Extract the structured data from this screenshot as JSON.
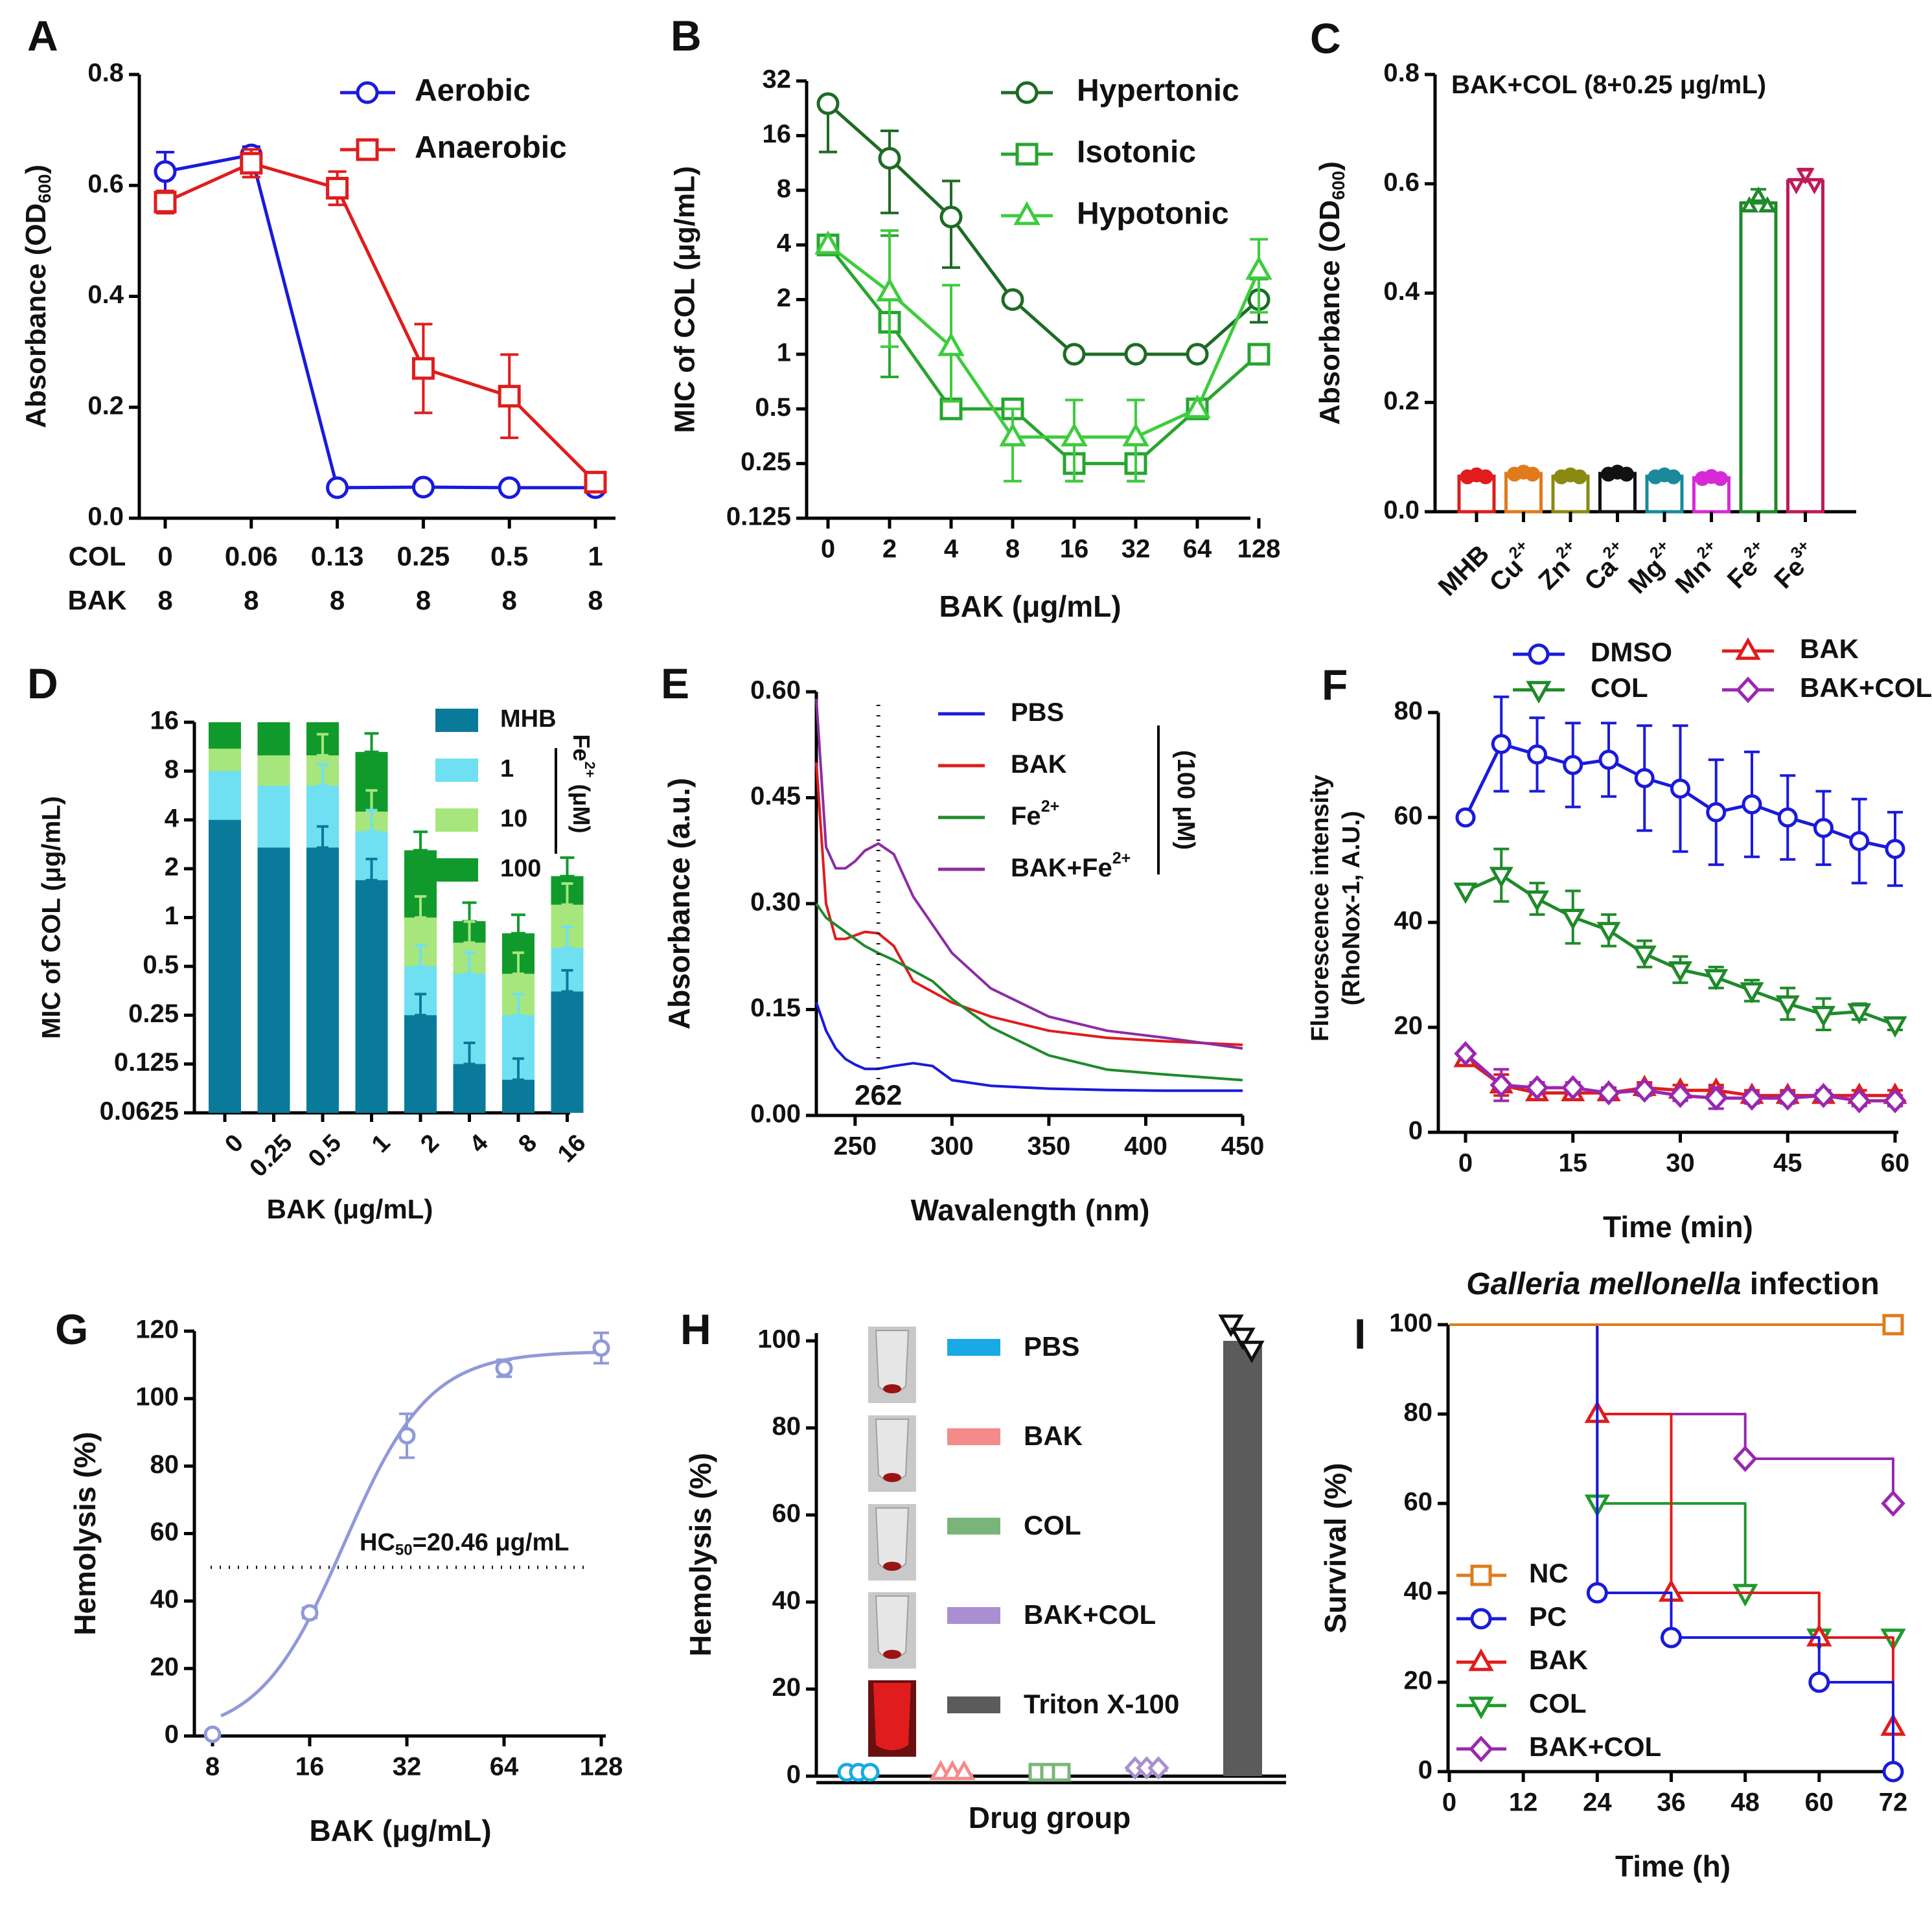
{
  "colors": {
    "aerobic": "#1a1adc",
    "anaerobic": "#e01c1c",
    "hyper": "#1e6b24",
    "iso": "#27a52f",
    "hypo": "#3dcc3d",
    "mhb_teal": "#0a7a9a",
    "fe1_cyan": "#6ee0f2",
    "fe10_green": "#a7e67c",
    "fe100_green": "#119a2c",
    "pbs_blue": "#1a1adc",
    "bak_red": "#e01c1c",
    "fe_green": "#1f8a2a",
    "bakfe_purple": "#8b2da3",
    "dmso": "#1a1adc",
    "col_green": "#1f8a2a",
    "bak_f": "#e01c1c",
    "bakcol_purple": "#9a27b0",
    "hemo": "#9099d8",
    "h_pbs": "#19a9e6",
    "h_bak": "#f48a8a",
    "h_col": "#79b57a",
    "h_bakcol": "#a98fd0",
    "h_triton": "#5b5b5b",
    "nc": "#e07b1c",
    "pc": "#1a1adc",
    "bak_i": "#e01c1c",
    "col_i": "#1f9a2a",
    "bakcol_i": "#9a27b0"
  },
  "chart_data": [
    {
      "panel": "A",
      "type": "line",
      "ylabel": "Absorbance (OD600)",
      "ylim": [
        0,
        0.8
      ],
      "yticks": [
        "0.0",
        "0.2",
        "0.4",
        "0.6",
        "0.8"
      ],
      "row_labels": [
        "COL",
        "BAK"
      ],
      "col_values": [
        "0",
        "0.06",
        "0.13",
        "0.25",
        "0.5",
        "1"
      ],
      "bak_values": [
        "8",
        "8",
        "8",
        "8",
        "8",
        "8"
      ],
      "series": [
        {
          "name": "Aerobic",
          "values": [
            0.625,
            0.655,
            0.055,
            0.056,
            0.055,
            0.055
          ],
          "err": [
            0.035,
            0.015,
            0.0,
            0.0,
            0.0,
            0.0
          ],
          "marker": "circle"
        },
        {
          "name": "Anaerobic",
          "values": [
            0.57,
            0.64,
            0.595,
            0.27,
            0.22,
            0.065
          ],
          "err": [
            0.02,
            0.025,
            0.03,
            0.08,
            0.075,
            0.01
          ],
          "marker": "square"
        }
      ]
    },
    {
      "panel": "B",
      "type": "line",
      "ylabel": "MIC of COL (μg/mL)",
      "xlabel": "BAK (μg/mL)",
      "ylim": [
        0.125,
        32
      ],
      "yticks": [
        "0.125",
        "0.25",
        "0.5",
        "1",
        "2",
        "4",
        "8",
        "16",
        "32"
      ],
      "categories": [
        "0",
        "2",
        "4",
        "8",
        "16",
        "32",
        "64",
        "128"
      ],
      "series": [
        {
          "name": "Hypertonic",
          "values": [
            24,
            12,
            5.7,
            2,
            1,
            1,
            1,
            2
          ],
          "err_hi": [
            0,
            17,
            9,
            0,
            0,
            0,
            0,
            2.6
          ],
          "err_lo": [
            13,
            6,
            3,
            0,
            0,
            0,
            0,
            1.5
          ],
          "marker": "circle"
        },
        {
          "name": "Isotonic",
          "values": [
            4,
            1.5,
            0.5,
            0.5,
            0.25,
            0.25,
            0.5,
            1
          ],
          "err_hi": [
            0,
            4.5,
            0,
            0,
            0,
            0,
            0,
            0
          ],
          "err_lo": [
            0,
            0.75,
            0,
            0,
            0.2,
            0.2,
            0,
            0
          ],
          "marker": "square"
        },
        {
          "name": "Hypotonic",
          "values": [
            4,
            2.2,
            1.1,
            0.35,
            0.35,
            0.35,
            0.5,
            2.9
          ],
          "err_hi": [
            0,
            4.8,
            2.4,
            0.5,
            0.56,
            0.56,
            0,
            4.3
          ],
          "err_lo": [
            0,
            1.1,
            0.55,
            0.2,
            0.2,
            0.2,
            0,
            1.7
          ],
          "marker": "triangle"
        }
      ]
    },
    {
      "panel": "C",
      "type": "bar",
      "title": "BAK+COL (8+0.25 μg/mL)",
      "ylabel": "Absorbance (OD600)",
      "ylim": [
        0,
        0.8
      ],
      "yticks": [
        "0.0",
        "0.2",
        "0.4",
        "0.6",
        "0.8"
      ],
      "categories": [
        "MHB",
        "Cu2+",
        "Zn2+",
        "Ca2+",
        "Mg2+",
        "Mn2+",
        "Fe2+",
        "Fe3+"
      ],
      "values": [
        0.065,
        0.07,
        0.065,
        0.07,
        0.065,
        0.062,
        0.565,
        0.605
      ],
      "err": [
        0.005,
        0.003,
        0.003,
        0.004,
        0.003,
        0.003,
        0.025,
        0.022
      ]
    },
    {
      "panel": "D",
      "type": "bar",
      "ylabel": "MIC of COL (μg/mL)",
      "xlabel": "BAK (μg/mL)",
      "ylim": [
        0.0625,
        16
      ],
      "yticks": [
        "0.0625",
        "0.125",
        "0.25",
        "0.5",
        "1",
        "2",
        "4",
        "8",
        "16"
      ],
      "categories": [
        "0",
        "0.25",
        "0.5",
        "1",
        "2",
        "4",
        "8",
        "16"
      ],
      "legend_title": "Fe2+ (μM)",
      "series": [
        {
          "name": "MHB",
          "values": [
            4,
            2.7,
            2.7,
            1.7,
            0.25,
            0.125,
            0.1,
            0.35
          ]
        },
        {
          "name": "1",
          "values": [
            8,
            6.5,
            6.5,
            3.4,
            0.5,
            0.45,
            0.25,
            0.65
          ]
        },
        {
          "name": "10",
          "values": [
            11,
            10,
            10,
            4.5,
            1.0,
            0.7,
            0.45,
            1.2
          ]
        },
        {
          "name": "100",
          "values": [
            16,
            16,
            16,
            10.5,
            2.6,
            0.95,
            0.8,
            1.8
          ]
        }
      ]
    },
    {
      "panel": "E",
      "type": "line",
      "ylabel": "Absorbance (a.u.)",
      "xlabel": "Wavalength (nm)",
      "xlim": [
        230,
        450
      ],
      "ylim": [
        0,
        0.6
      ],
      "xticks": [
        "250",
        "300",
        "350",
        "400",
        "450"
      ],
      "yticks": [
        "0.00",
        "0.15",
        "0.30",
        "0.45",
        "0.60"
      ],
      "marker_line_x": 262,
      "marker_line_label": "262",
      "legend_note": "(100 μM)",
      "x": [
        230,
        235,
        240,
        245,
        250,
        255,
        262,
        270,
        280,
        290,
        300,
        320,
        350,
        380,
        410,
        450
      ],
      "series": [
        {
          "name": "PBS",
          "values": [
            0.16,
            0.12,
            0.095,
            0.08,
            0.072,
            0.066,
            0.066,
            0.07,
            0.074,
            0.07,
            0.05,
            0.042,
            0.038,
            0.036,
            0.035,
            0.035
          ]
        },
        {
          "name": "BAK",
          "values": [
            0.5,
            0.3,
            0.25,
            0.25,
            0.255,
            0.26,
            0.258,
            0.24,
            0.19,
            0.175,
            0.16,
            0.14,
            0.12,
            0.11,
            0.105,
            0.1
          ]
        },
        {
          "name": "Fe2+",
          "values": [
            0.3,
            0.28,
            0.27,
            0.26,
            0.25,
            0.24,
            0.23,
            0.22,
            0.205,
            0.19,
            0.165,
            0.125,
            0.085,
            0.065,
            0.058,
            0.05
          ]
        },
        {
          "name": "BAK+Fe2+",
          "values": [
            0.59,
            0.38,
            0.35,
            0.35,
            0.36,
            0.375,
            0.385,
            0.37,
            0.31,
            0.27,
            0.23,
            0.18,
            0.14,
            0.12,
            0.11,
            0.095
          ]
        }
      ]
    },
    {
      "panel": "F",
      "type": "line",
      "ylabel": "Fluorescence intensity (RhoNox-1, A.U.)",
      "xlabel": "Time (min)",
      "xlim": [
        0,
        60
      ],
      "ylim": [
        0,
        80
      ],
      "xticks": [
        "0",
        "15",
        "30",
        "45",
        "60"
      ],
      "yticks": [
        "0",
        "20",
        "40",
        "60",
        "80"
      ],
      "x": [
        0,
        5,
        10,
        15,
        20,
        25,
        30,
        35,
        40,
        45,
        50,
        55,
        60
      ],
      "series": [
        {
          "name": "DMSO",
          "values": [
            60,
            74,
            72,
            70,
            71,
            67.5,
            65.5,
            61,
            62.5,
            60,
            58,
            55.5,
            54
          ],
          "err": [
            0,
            9,
            7,
            8,
            7,
            10,
            12,
            10,
            10,
            8,
            7,
            8,
            7
          ],
          "marker": "circle"
        },
        {
          "name": "COL",
          "values": [
            46,
            49,
            44.5,
            41,
            38.5,
            34,
            31,
            29.5,
            27,
            24.5,
            22.5,
            23,
            20.5
          ],
          "err": [
            0,
            5,
            3,
            5,
            3,
            2.5,
            2.5,
            2,
            2,
            3,
            3,
            1.5,
            1
          ],
          "marker": "triangle-down"
        },
        {
          "name": "BAK",
          "values": [
            14,
            9,
            7.5,
            7.5,
            7.5,
            8.5,
            8,
            8,
            7,
            7,
            7,
            7,
            7
          ],
          "err": [
            0,
            2,
            1,
            1,
            1,
            1,
            1,
            1,
            1,
            1,
            1,
            1,
            1
          ],
          "marker": "triangle"
        },
        {
          "name": "BAK+COL",
          "values": [
            15,
            9,
            8.5,
            8.5,
            7.5,
            8,
            7,
            6.5,
            6.5,
            6.5,
            7,
            6,
            6
          ],
          "err": [
            0,
            3,
            1,
            1,
            1,
            1,
            1,
            2,
            1,
            1,
            1,
            1,
            1
          ],
          "marker": "diamond"
        }
      ]
    },
    {
      "panel": "G",
      "type": "scatter",
      "ylabel": "Hemolysis (%)",
      "xlabel": "BAK (μg/mL)",
      "ylim": [
        0,
        120
      ],
      "xticks": [
        "8",
        "16",
        "32",
        "64",
        "128"
      ],
      "yticks": [
        "0",
        "20",
        "40",
        "60",
        "80",
        "100",
        "120"
      ],
      "x": [
        8,
        16,
        32,
        64,
        128
      ],
      "values": [
        0.5,
        36.5,
        89,
        109,
        115
      ],
      "err": [
        0,
        1.5,
        6.5,
        2.5,
        4.5
      ],
      "threshold": 50,
      "annotation": "HC50=20.46 μg/mL"
    },
    {
      "panel": "H",
      "type": "bar",
      "ylabel": "Hemolysis (%)",
      "xlabel": "Drug group",
      "ylim": [
        0,
        100
      ],
      "yticks": [
        "0",
        "20",
        "40",
        "60",
        "80",
        "100"
      ],
      "categories": [
        "PBS",
        "BAK",
        "COL",
        "BAK+COL",
        "Triton X-100"
      ],
      "values": [
        0,
        0,
        0,
        1,
        100
      ]
    },
    {
      "panel": "I",
      "type": "line",
      "title": "Galleria mellonella infection",
      "ylabel": "Survival (%)",
      "xlabel": "Time (h)",
      "xlim": [
        0,
        72
      ],
      "ylim": [
        0,
        100
      ],
      "xticks": [
        "0",
        "12",
        "24",
        "36",
        "48",
        "60",
        "72"
      ],
      "yticks": [
        "0",
        "20",
        "40",
        "60",
        "80",
        "100"
      ],
      "series": [
        {
          "name": "NC",
          "steps": [
            [
              0,
              100
            ],
            [
              72,
              100
            ]
          ],
          "points": [
            [
              72,
              100
            ]
          ],
          "marker": "square"
        },
        {
          "name": "PC",
          "steps": [
            [
              0,
              100
            ],
            [
              24,
              100
            ],
            [
              24,
              40
            ],
            [
              36,
              40
            ],
            [
              36,
              30
            ],
            [
              60,
              30
            ],
            [
              60,
              20
            ],
            [
              72,
              20
            ],
            [
              72,
              0
            ]
          ],
          "points": [
            [
              24,
              40
            ],
            [
              36,
              30
            ],
            [
              60,
              20
            ],
            [
              72,
              0
            ]
          ],
          "marker": "circle"
        },
        {
          "name": "BAK",
          "steps": [
            [
              0,
              100
            ],
            [
              24,
              100
            ],
            [
              24,
              80
            ],
            [
              36,
              80
            ],
            [
              36,
              40
            ],
            [
              60,
              40
            ],
            [
              60,
              30
            ],
            [
              72,
              30
            ],
            [
              72,
              10
            ]
          ],
          "points": [
            [
              24,
              80
            ],
            [
              36,
              40
            ],
            [
              60,
              30
            ],
            [
              72,
              10
            ]
          ],
          "marker": "triangle"
        },
        {
          "name": "COL",
          "steps": [
            [
              0,
              100
            ],
            [
              24,
              100
            ],
            [
              24,
              60
            ],
            [
              48,
              60
            ],
            [
              48,
              40
            ],
            [
              60,
              40
            ],
            [
              60,
              30
            ],
            [
              72,
              30
            ]
          ],
          "points": [
            [
              24,
              60
            ],
            [
              48,
              40
            ],
            [
              60,
              30
            ],
            [
              72,
              30
            ]
          ],
          "marker": "triangle-down"
        },
        {
          "name": "BAK+COL",
          "steps": [
            [
              0,
              100
            ],
            [
              24,
              100
            ],
            [
              24,
              80
            ],
            [
              48,
              80
            ],
            [
              48,
              70
            ],
            [
              72,
              70
            ],
            [
              72,
              60
            ]
          ],
          "points": [
            [
              48,
              70
            ],
            [
              72,
              60
            ]
          ],
          "marker": "diamond"
        }
      ]
    }
  ]
}
